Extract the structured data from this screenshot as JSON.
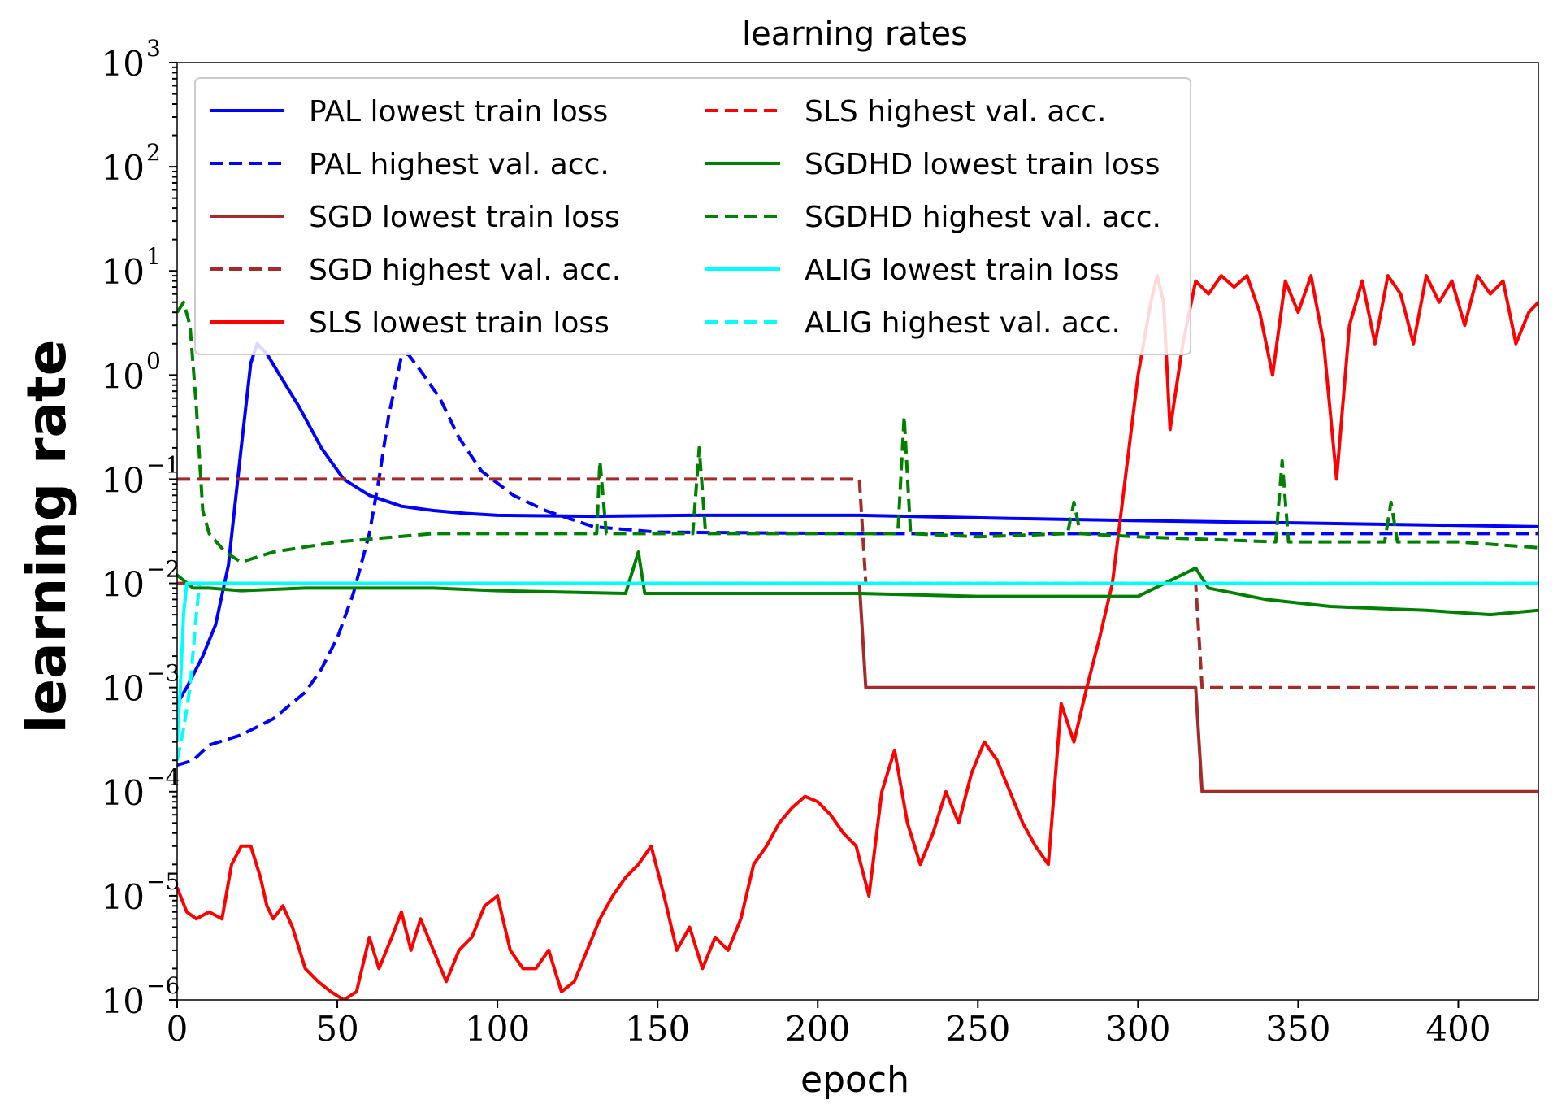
{
  "chart_data": {
    "type": "line",
    "title": "learning rates",
    "xlabel": "epoch",
    "ylabel": "learning rate",
    "x_ticks": [
      0,
      50,
      100,
      150,
      200,
      250,
      300,
      350,
      400
    ],
    "y_ticks": [
      {
        "base": "10",
        "exp": "−6",
        "value": 1e-06
      },
      {
        "base": "10",
        "exp": "−5",
        "value": 1e-05
      },
      {
        "base": "10",
        "exp": "−4",
        "value": 0.0001
      },
      {
        "base": "10",
        "exp": "−3",
        "value": 0.001
      },
      {
        "base": "10",
        "exp": "−2",
        "value": 0.01
      },
      {
        "base": "10",
        "exp": "−1",
        "value": 0.1
      },
      {
        "base": "10",
        "exp": "0",
        "value": 1
      },
      {
        "base": "10",
        "exp": "1",
        "value": 10
      },
      {
        "base": "10",
        "exp": "2",
        "value": 100
      },
      {
        "base": "10",
        "exp": "3",
        "value": 1000
      }
    ],
    "xlim": [
      0,
      425
    ],
    "ylim": [
      1e-06,
      1000
    ],
    "yscale": "log",
    "grid": false,
    "legend_placement": "top",
    "series": [
      {
        "name": "PAL lowest train loss",
        "color": "#0000ff",
        "style": "solid",
        "points": [
          [
            0,
            0.0007
          ],
          [
            3,
            0.001
          ],
          [
            8,
            0.002
          ],
          [
            12,
            0.004
          ],
          [
            16,
            0.015
          ],
          [
            20,
            0.2
          ],
          [
            23,
            1.3
          ],
          [
            25,
            2.0
          ],
          [
            28,
            1.6
          ],
          [
            32,
            1.0
          ],
          [
            38,
            0.5
          ],
          [
            45,
            0.2
          ],
          [
            52,
            0.1
          ],
          [
            60,
            0.07
          ],
          [
            70,
            0.055
          ],
          [
            80,
            0.05
          ],
          [
            90,
            0.047
          ],
          [
            100,
            0.045
          ],
          [
            130,
            0.044
          ],
          [
            160,
            0.045
          ],
          [
            213,
            0.045
          ],
          [
            260,
            0.042
          ],
          [
            300,
            0.04
          ],
          [
            350,
            0.038
          ],
          [
            400,
            0.036
          ],
          [
            425,
            0.035
          ]
        ]
      },
      {
        "name": "PAL highest val. acc.",
        "color": "#0000ff",
        "style": "dashed",
        "points": [
          [
            0,
            0.00018
          ],
          [
            5,
            0.0002
          ],
          [
            10,
            0.00028
          ],
          [
            20,
            0.00035
          ],
          [
            30,
            0.0005
          ],
          [
            40,
            0.0009
          ],
          [
            45,
            0.0015
          ],
          [
            50,
            0.003
          ],
          [
            55,
            0.008
          ],
          [
            60,
            0.03
          ],
          [
            63,
            0.1
          ],
          [
            66,
            0.4
          ],
          [
            70,
            1.5
          ],
          [
            72,
            1.6
          ],
          [
            76,
            1.1
          ],
          [
            82,
            0.6
          ],
          [
            88,
            0.25
          ],
          [
            95,
            0.12
          ],
          [
            105,
            0.07
          ],
          [
            115,
            0.05
          ],
          [
            130,
            0.035
          ],
          [
            150,
            0.031
          ],
          [
            213,
            0.03
          ],
          [
            300,
            0.03
          ],
          [
            425,
            0.03
          ]
        ]
      },
      {
        "name": "SGD lowest train loss",
        "color": "#a52a2a",
        "style": "solid",
        "points": [
          [
            0,
            0.01
          ],
          [
            213,
            0.01
          ],
          [
            215,
            0.001
          ],
          [
            318,
            0.001
          ],
          [
            320,
            0.0001
          ],
          [
            425,
            0.0001
          ]
        ]
      },
      {
        "name": "SGD highest val. acc.",
        "color": "#a52a2a",
        "style": "dashed",
        "points": [
          [
            0,
            0.1
          ],
          [
            213,
            0.1
          ],
          [
            215,
            0.01
          ],
          [
            318,
            0.01
          ],
          [
            320,
            0.001
          ],
          [
            425,
            0.001
          ]
        ]
      },
      {
        "name": "SLS lowest train loss",
        "color": "#ff0000",
        "style": "solid",
        "points": [
          [
            0,
            1.2e-05
          ],
          [
            3,
            7e-06
          ],
          [
            6,
            6e-06
          ],
          [
            10,
            7e-06
          ],
          [
            14,
            6e-06
          ],
          [
            17,
            2e-05
          ],
          [
            20,
            3e-05
          ],
          [
            23,
            3e-05
          ],
          [
            26,
            1.5e-05
          ],
          [
            28,
            8e-06
          ],
          [
            30,
            6e-06
          ],
          [
            33,
            8e-06
          ],
          [
            36,
            5e-06
          ],
          [
            40,
            2e-06
          ],
          [
            44,
            1.5e-06
          ],
          [
            48,
            1.2e-06
          ],
          [
            52,
            1e-06
          ],
          [
            56,
            1.2e-06
          ],
          [
            60,
            4e-06
          ],
          [
            63,
            2e-06
          ],
          [
            67,
            4e-06
          ],
          [
            70,
            7e-06
          ],
          [
            73,
            3e-06
          ],
          [
            76,
            6e-06
          ],
          [
            80,
            3e-06
          ],
          [
            84,
            1.5e-06
          ],
          [
            88,
            3e-06
          ],
          [
            92,
            4e-06
          ],
          [
            96,
            8e-06
          ],
          [
            100,
            1e-05
          ],
          [
            104,
            3e-06
          ],
          [
            108,
            2e-06
          ],
          [
            112,
            2e-06
          ],
          [
            116,
            3e-06
          ],
          [
            120,
            1.2e-06
          ],
          [
            124,
            1.5e-06
          ],
          [
            128,
            3e-06
          ],
          [
            132,
            6e-06
          ],
          [
            136,
            1e-05
          ],
          [
            140,
            1.5e-05
          ],
          [
            144,
            2e-05
          ],
          [
            148,
            3e-05
          ],
          [
            152,
            1e-05
          ],
          [
            156,
            3e-06
          ],
          [
            160,
            5e-06
          ],
          [
            164,
            2e-06
          ],
          [
            168,
            4e-06
          ],
          [
            172,
            3e-06
          ],
          [
            176,
            6e-06
          ],
          [
            180,
            2e-05
          ],
          [
            184,
            3e-05
          ],
          [
            188,
            5e-05
          ],
          [
            192,
            7e-05
          ],
          [
            196,
            9e-05
          ],
          [
            200,
            8e-05
          ],
          [
            204,
            6e-05
          ],
          [
            208,
            4e-05
          ],
          [
            212,
            3e-05
          ],
          [
            216,
            1e-05
          ],
          [
            220,
            0.0001
          ],
          [
            224,
            0.00025
          ],
          [
            228,
            5e-05
          ],
          [
            232,
            2e-05
          ],
          [
            236,
            4e-05
          ],
          [
            240,
            0.0001
          ],
          [
            244,
            5e-05
          ],
          [
            248,
            0.00015
          ],
          [
            252,
            0.0003
          ],
          [
            256,
            0.0002
          ],
          [
            260,
            0.0001
          ],
          [
            264,
            5e-05
          ],
          [
            268,
            3e-05
          ],
          [
            272,
            2e-05
          ],
          [
            276,
            0.0007
          ],
          [
            280,
            0.0003
          ],
          [
            284,
            0.001
          ],
          [
            288,
            0.003
          ],
          [
            292,
            0.01
          ],
          [
            296,
            0.1
          ],
          [
            300,
            1
          ],
          [
            304,
            5
          ],
          [
            306,
            9
          ],
          [
            308,
            5
          ],
          [
            310,
            0.3
          ],
          [
            314,
            2
          ],
          [
            318,
            8
          ],
          [
            322,
            6
          ],
          [
            326,
            9
          ],
          [
            330,
            7
          ],
          [
            334,
            9
          ],
          [
            338,
            4
          ],
          [
            342,
            1
          ],
          [
            346,
            8
          ],
          [
            350,
            4
          ],
          [
            354,
            9
          ],
          [
            358,
            2
          ],
          [
            362,
            0.1
          ],
          [
            366,
            3
          ],
          [
            370,
            8
          ],
          [
            374,
            2
          ],
          [
            378,
            9
          ],
          [
            382,
            6
          ],
          [
            386,
            2
          ],
          [
            390,
            9
          ],
          [
            394,
            5
          ],
          [
            398,
            8
          ],
          [
            402,
            3
          ],
          [
            406,
            9
          ],
          [
            410,
            6
          ],
          [
            414,
            8
          ],
          [
            418,
            2
          ],
          [
            422,
            4
          ],
          [
            425,
            5
          ]
        ]
      },
      {
        "name": "SLS highest val. acc.",
        "color": "#ff0000",
        "style": "dashed",
        "points": []
      },
      {
        "name": "SGDHD lowest train loss",
        "color": "#008000",
        "style": "solid",
        "points": [
          [
            0,
            0.012
          ],
          [
            5,
            0.009
          ],
          [
            10,
            0.009
          ],
          [
            20,
            0.0085
          ],
          [
            40,
            0.009
          ],
          [
            60,
            0.009
          ],
          [
            80,
            0.009
          ],
          [
            100,
            0.0085
          ],
          [
            140,
            0.008
          ],
          [
            144,
            0.02
          ],
          [
            146,
            0.008
          ],
          [
            180,
            0.008
          ],
          [
            213,
            0.008
          ],
          [
            250,
            0.0075
          ],
          [
            300,
            0.0075
          ],
          [
            318,
            0.014
          ],
          [
            322,
            0.009
          ],
          [
            340,
            0.007
          ],
          [
            360,
            0.006
          ],
          [
            390,
            0.0055
          ],
          [
            410,
            0.005
          ],
          [
            425,
            0.0055
          ]
        ]
      },
      {
        "name": "SGDHD highest val. acc.",
        "color": "#008000",
        "style": "dashed",
        "points": [
          [
            0,
            4
          ],
          [
            2,
            5
          ],
          [
            4,
            3
          ],
          [
            6,
            0.5
          ],
          [
            8,
            0.05
          ],
          [
            10,
            0.03
          ],
          [
            15,
            0.02
          ],
          [
            20,
            0.016
          ],
          [
            30,
            0.02
          ],
          [
            50,
            0.025
          ],
          [
            80,
            0.03
          ],
          [
            100,
            0.03
          ],
          [
            131,
            0.03
          ],
          [
            132,
            0.15
          ],
          [
            134,
            0.03
          ],
          [
            161,
            0.03
          ],
          [
            163,
            0.2
          ],
          [
            165,
            0.03
          ],
          [
            213,
            0.03
          ],
          [
            225,
            0.03
          ],
          [
            227,
            0.4
          ],
          [
            229,
            0.03
          ],
          [
            250,
            0.028
          ],
          [
            278,
            0.03
          ],
          [
            280,
            0.06
          ],
          [
            282,
            0.03
          ],
          [
            300,
            0.028
          ],
          [
            343,
            0.025
          ],
          [
            345,
            0.15
          ],
          [
            347,
            0.025
          ],
          [
            377,
            0.025
          ],
          [
            379,
            0.06
          ],
          [
            381,
            0.025
          ],
          [
            400,
            0.025
          ],
          [
            425,
            0.022
          ]
        ]
      },
      {
        "name": "ALIG lowest train loss",
        "color": "#00ffff",
        "style": "solid",
        "points": [
          [
            0,
            0.0003
          ],
          [
            1,
            0.001
          ],
          [
            2,
            0.005
          ],
          [
            3,
            0.01
          ],
          [
            425,
            0.01
          ]
        ]
      },
      {
        "name": "ALIG highest val. acc.",
        "color": "#00ffff",
        "style": "dashed",
        "points": [
          [
            0,
            0.0002
          ],
          [
            2,
            0.0004
          ],
          [
            4,
            0.001
          ],
          [
            6,
            0.005
          ],
          [
            7,
            0.01
          ],
          [
            425,
            0.01
          ]
        ]
      }
    ]
  }
}
